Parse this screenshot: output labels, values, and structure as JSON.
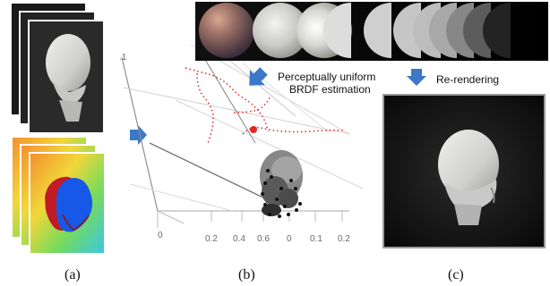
{
  "figure": {
    "panel_labels": {
      "a": "(a)",
      "b": "(b)",
      "c": "(c)"
    },
    "captions": {
      "brdf_line1": "Perceptually uniform",
      "brdf_line2": "BRDF estimation",
      "rerendering": "Re-rendering"
    },
    "axis_ticks": {
      "top_left": ".1",
      "t0": "0",
      "t1": "0.2",
      "t2": "0.4",
      "t3": "0.6",
      "t4": "0",
      "t5": "0.1",
      "t6": "0.2"
    },
    "colors": {
      "arrow": "#3c78c8",
      "material_strip_bg": "#000000",
      "point_red": "#e52626",
      "photo_bg": "#0b0b0b",
      "head_gray": "#cfcfcf"
    },
    "icons": {
      "arrow": "arrow-icon"
    }
  }
}
